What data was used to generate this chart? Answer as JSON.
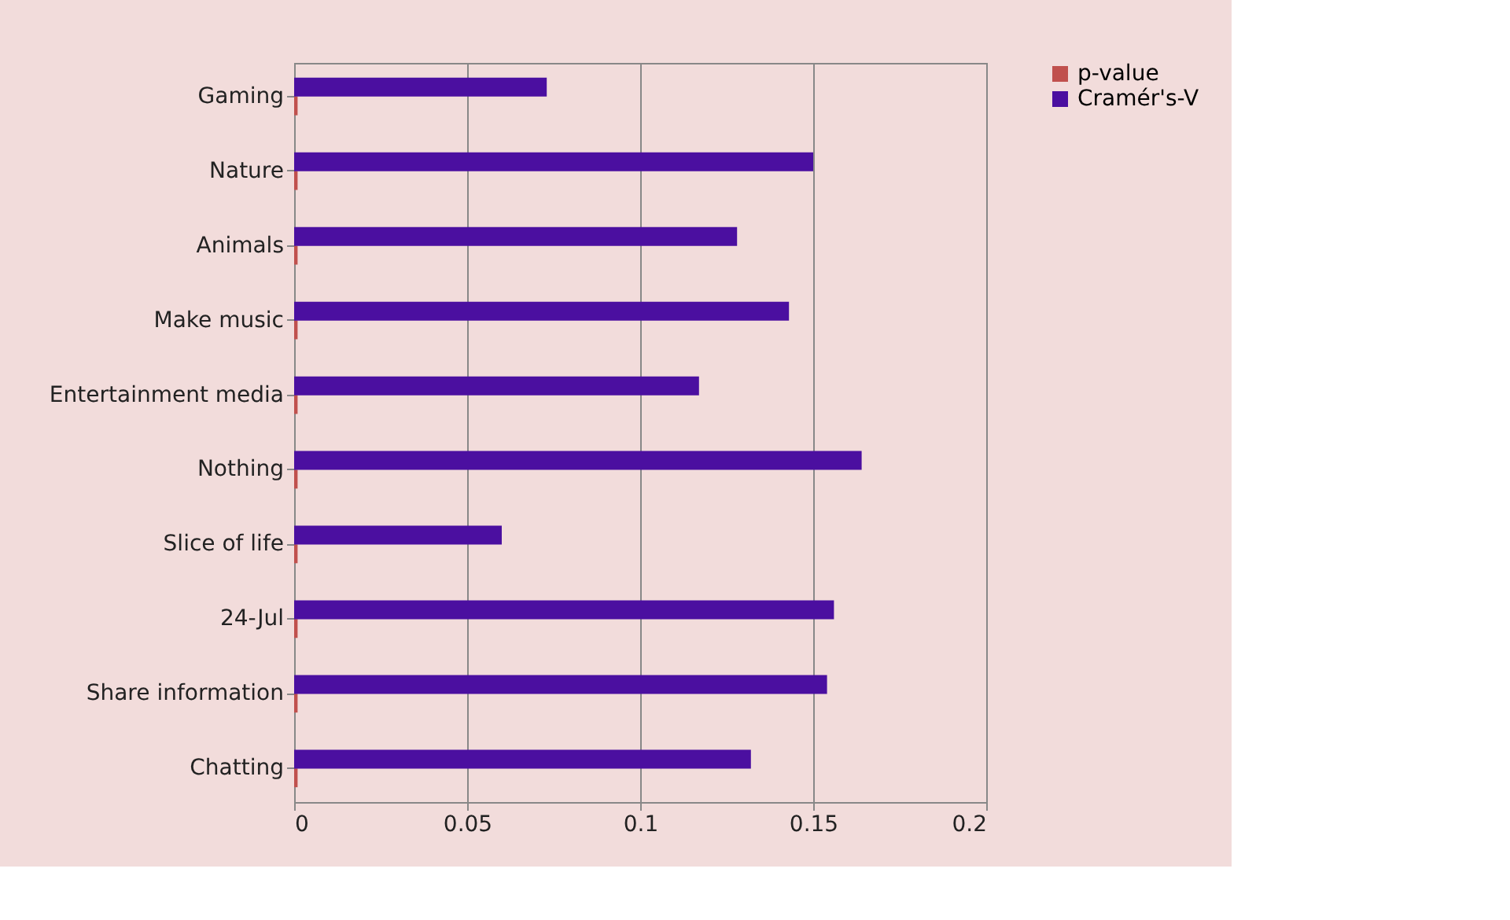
{
  "chart_data": {
    "type": "bar",
    "orientation": "horizontal",
    "categories": [
      "Gaming",
      "Nature",
      "Animals",
      "Make music",
      "Entertainment media",
      "Nothing",
      "Slice of life",
      "24-Jul",
      "Share information",
      "Chatting"
    ],
    "series": [
      {
        "name": "p-value",
        "color": "#c0504d",
        "values": [
          0.001,
          0.001,
          0.001,
          0.001,
          0.001,
          0.001,
          0.001,
          0.001,
          0.001,
          0.001
        ]
      },
      {
        "name": "Cramér's-V",
        "color": "#4b0fa0",
        "values": [
          0.073,
          0.15,
          0.128,
          0.143,
          0.117,
          0.164,
          0.06,
          0.156,
          0.154,
          0.132
        ]
      }
    ],
    "xlim": [
      0,
      0.2
    ],
    "xticks": [
      0,
      0.05,
      0.1,
      0.15,
      0.2
    ],
    "grid": "x",
    "legend": "right"
  }
}
